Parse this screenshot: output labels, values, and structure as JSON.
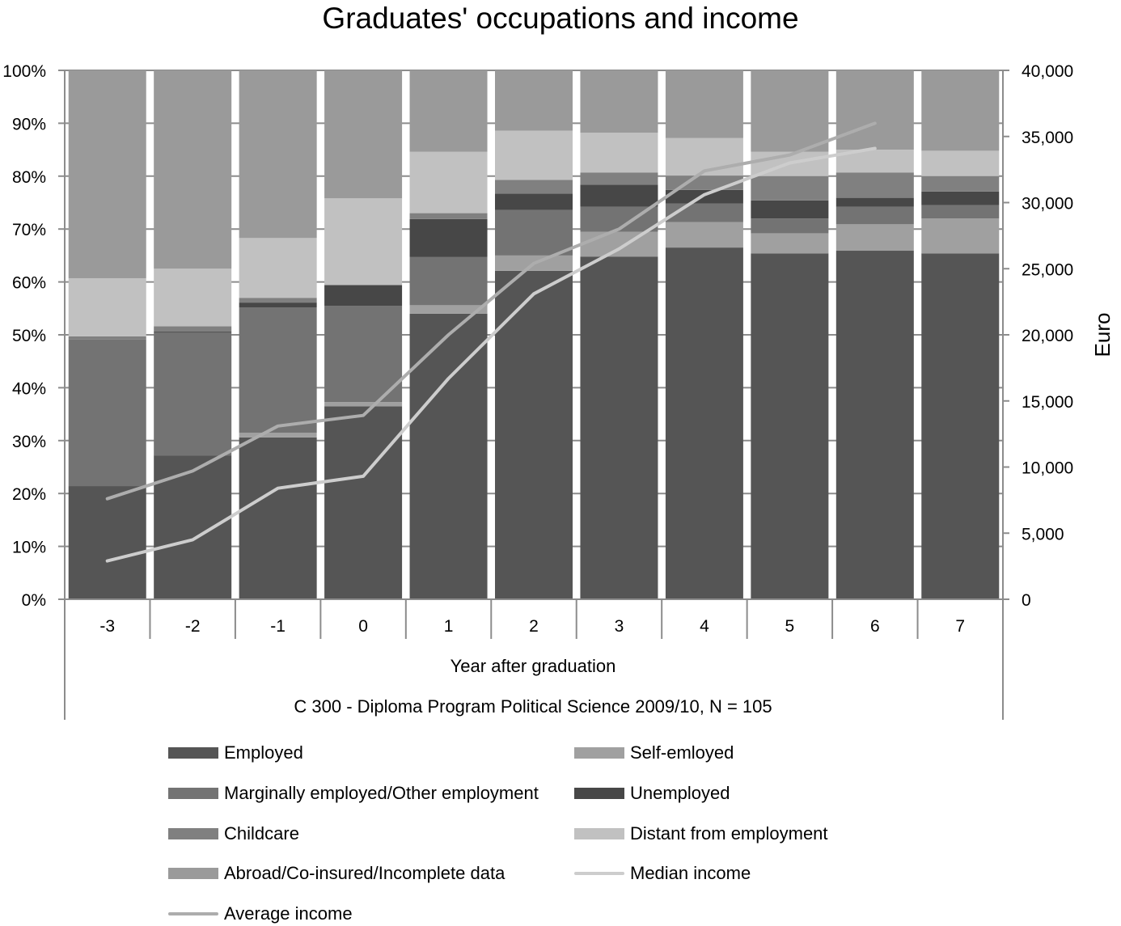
{
  "chart_data": {
    "type": "bar",
    "stacked": true,
    "normalized": true,
    "title": "Graduates' occupations and income",
    "xlabel": "Year after graduation",
    "subtitle": "C 300 - Diploma Program Political Science 2009/10, N = 105",
    "ylabel": "",
    "ylabel_right": "Euro",
    "ylim": [
      0,
      100
    ],
    "ylim_right": [
      0,
      40000
    ],
    "y_ticks": [
      "0%",
      "10%",
      "20%",
      "30%",
      "40%",
      "50%",
      "60%",
      "70%",
      "80%",
      "90%",
      "100%"
    ],
    "y_ticks_right": [
      "0",
      "5,000",
      "10,000",
      "15,000",
      "20,000",
      "25,000",
      "30,000",
      "35,000",
      "40,000"
    ],
    "categories": [
      "-3",
      "-2",
      "-1",
      "0",
      "1",
      "2",
      "3",
      "4",
      "5",
      "6",
      "7"
    ],
    "grid": true,
    "legend_position": "bottom",
    "series": [
      {
        "name": "Employed",
        "kind": "bar",
        "color": "#555555",
        "values": [
          21.4,
          27.2,
          30.6,
          36.5,
          54.0,
          62.1,
          64.8,
          66.5,
          65.4,
          65.9,
          65.4
        ]
      },
      {
        "name": "Self-emloyed",
        "kind": "bar",
        "color": "#a0a0a0",
        "values": [
          0.0,
          0.0,
          0.9,
          0.8,
          1.6,
          2.9,
          4.7,
          4.8,
          3.8,
          5.0,
          6.6
        ]
      },
      {
        "name": "Marginally employed/Other employment",
        "kind": "bar",
        "color": "#737373",
        "values": [
          27.7,
          23.2,
          23.7,
          18.2,
          9.1,
          8.6,
          4.7,
          3.5,
          2.8,
          3.3,
          2.5
        ]
      },
      {
        "name": "Unemployed",
        "kind": "bar",
        "color": "#474747",
        "values": [
          0.0,
          0.2,
          0.9,
          3.9,
          7.2,
          3.1,
          4.2,
          2.6,
          3.4,
          1.7,
          2.6
        ]
      },
      {
        "name": "Childcare",
        "kind": "bar",
        "color": "#808080",
        "values": [
          0.6,
          1.0,
          0.9,
          0.0,
          1.1,
          2.6,
          2.3,
          2.7,
          4.6,
          4.8,
          2.9
        ]
      },
      {
        "name": "Distant from employment",
        "kind": "bar",
        "color": "#c1c1c1",
        "values": [
          11.0,
          10.9,
          11.3,
          16.4,
          11.6,
          9.3,
          7.5,
          7.1,
          4.6,
          4.3,
          4.8
        ]
      },
      {
        "name": "Abroad/Co-insured/Incomplete data",
        "kind": "bar",
        "color": "#9a9a9a",
        "values": [
          39.3,
          37.5,
          31.7,
          24.2,
          15.4,
          11.4,
          11.8,
          12.8,
          15.4,
          15.0,
          15.2
        ]
      },
      {
        "name": "Median income",
        "kind": "line",
        "axis": "right",
        "color": "#cdcdcd",
        "values": [
          2900,
          4500,
          8400,
          9300,
          16700,
          23100,
          26500,
          30600,
          33000,
          34100,
          null
        ]
      },
      {
        "name": "Average income",
        "kind": "line",
        "axis": "right",
        "color": "#adadad",
        "values": [
          7600,
          9700,
          13100,
          13900,
          20000,
          25400,
          28000,
          32400,
          33600,
          36000,
          null
        ]
      }
    ]
  },
  "legend": {
    "items": [
      {
        "label": "Employed",
        "type": "swatch",
        "color": "#555555"
      },
      {
        "label": "Self-emloyed",
        "type": "swatch",
        "color": "#a0a0a0"
      },
      {
        "label": "Marginally employed/Other employment",
        "type": "swatch",
        "color": "#737373"
      },
      {
        "label": "Unemployed",
        "type": "swatch",
        "color": "#474747"
      },
      {
        "label": "Childcare",
        "type": "swatch",
        "color": "#808080"
      },
      {
        "label": "Distant from employment",
        "type": "swatch",
        "color": "#c1c1c1"
      },
      {
        "label": "Abroad/Co-insured/Incomplete data",
        "type": "swatch",
        "color": "#9a9a9a"
      },
      {
        "label": "Median income",
        "type": "line",
        "color": "#cdcdcd"
      },
      {
        "label": "Average income",
        "type": "line",
        "color": "#adadad"
      }
    ]
  }
}
